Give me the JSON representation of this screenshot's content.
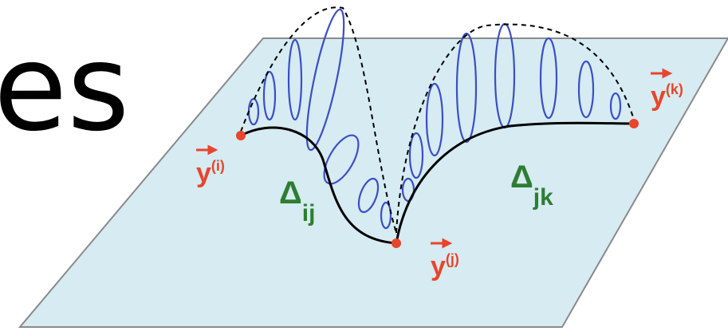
{
  "slide_text": "es",
  "points": [
    {
      "symbol": "y",
      "superscript": "(i)"
    },
    {
      "symbol": "y",
      "superscript": "(j)"
    },
    {
      "symbol": "y",
      "superscript": "(k)"
    }
  ],
  "edges": [
    {
      "symbol": "Δ",
      "subscript": "ij"
    },
    {
      "symbol": "Δ",
      "subscript": "jk"
    }
  ]
}
